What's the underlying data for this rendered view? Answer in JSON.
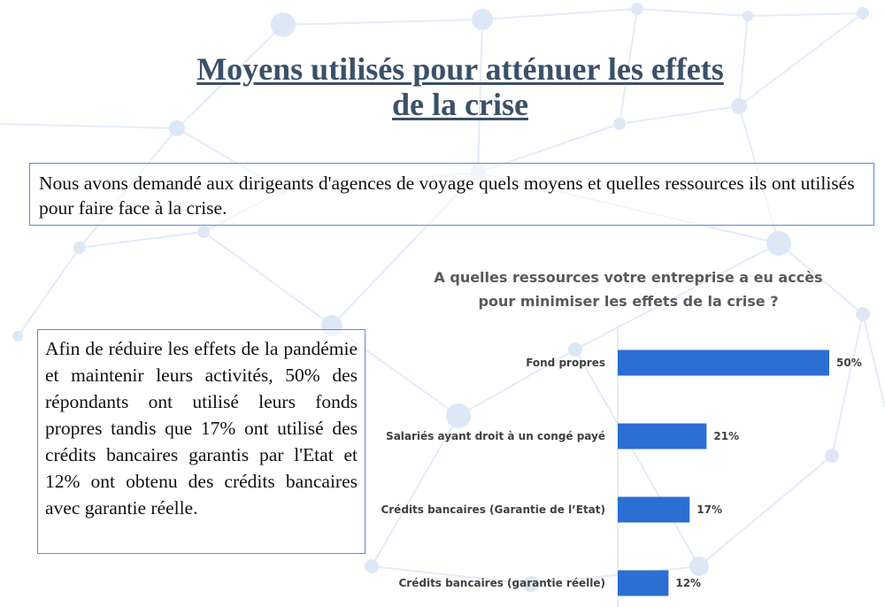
{
  "title": {
    "line1": "Moyens utilisés pour atténuer les effets",
    "line2": "de la crise"
  },
  "intro": "Nous avons demandé aux dirigeants d'agences de voyage quels moyens et quelles ressources ils ont utilisés pour faire face à la crise.",
  "summary": "Afin de réduire les effets de la pandémie et maintenir leurs activités, 50% des répondants ont utilisé  leurs fonds propres tandis que 17% ont utilisé des crédits bancaires garantis par l'Etat et 12% ont obtenu des crédits bancaires avec garantie réelle.",
  "colors": {
    "bar": "#2a6fd1",
    "title": "#3b5069",
    "box_border": "#5b8bd6"
  },
  "chart_data": {
    "type": "bar",
    "orientation": "horizontal",
    "title_line1": "A quelles ressources votre entreprise a eu accès",
    "title_line2": "pour minimiser les effets de la crise ?",
    "categories": [
      "Fond propres",
      "Salariés ayant droit à un congé payé",
      "Crédits bancaires (Garantie de l’Etat)",
      "Crédits bancaires (garantie réelle)"
    ],
    "values": [
      50,
      21,
      17,
      12
    ],
    "labels": [
      "50%",
      "21%",
      "17%",
      "12%"
    ],
    "unit": "%",
    "xlim": [
      0,
      50
    ],
    "grid": false,
    "legend": "none"
  }
}
